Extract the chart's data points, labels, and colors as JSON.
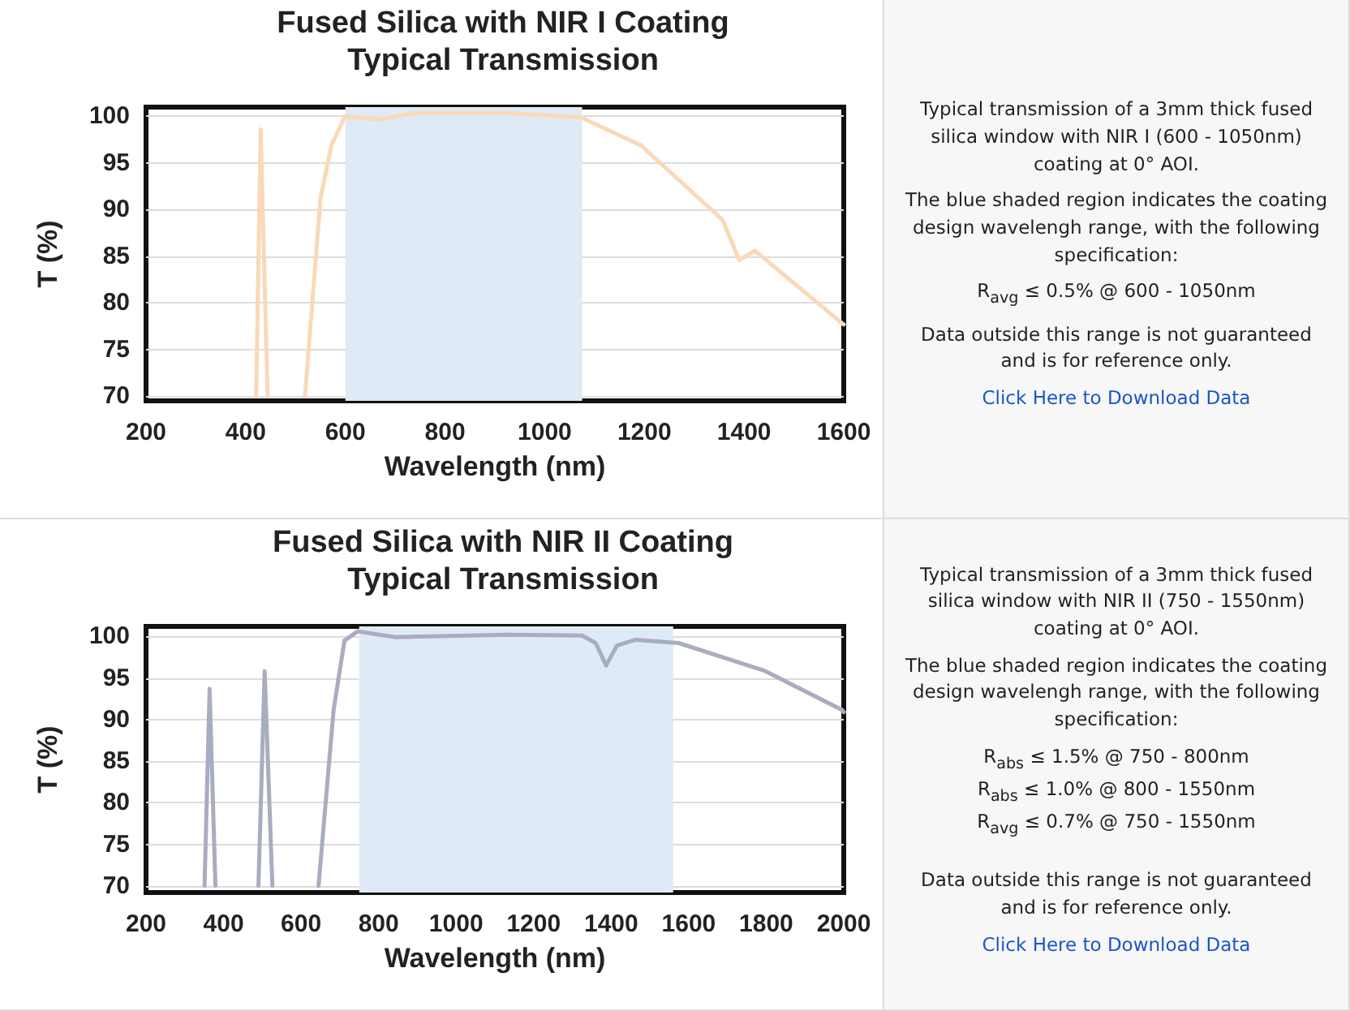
{
  "chart_data": [
    {
      "type": "line",
      "title": "Fused Silica with NIR I Coating",
      "subtitle": "Typical Transmission",
      "xlabel": "Wavelength (nm)",
      "ylabel": "T (%)",
      "x": [
        421,
        430,
        444,
        480,
        519,
        550,
        572,
        599,
        670,
        744,
        920,
        1073,
        1193,
        1357,
        1390,
        1422,
        1597,
        1600
      ],
      "series": [
        {
          "color": "#f9d9b8",
          "values": [
            70,
            98.6,
            70,
            null,
            70,
            91.2,
            96.9,
            100,
            99.7,
            100.4,
            100.4,
            99.9,
            96.9,
            88.9,
            84.6,
            85.6,
            77.8,
            77.7
          ]
        }
      ],
      "xlim": [
        200,
        1600
      ],
      "xticks": [
        200,
        400,
        600,
        800,
        1000,
        1200,
        1400,
        1600
      ],
      "ylim": [
        69.5,
        101
      ],
      "yticks": [
        70,
        75,
        80,
        85,
        90,
        95,
        100
      ],
      "bands": [
        {
          "axis": "x",
          "from": 600,
          "to": 1075,
          "color": "#deeaf6"
        }
      ],
      "grid": "y"
    },
    {
      "type": "other",
      "annotations": [
        "Typical transmission of a 3mm thick fused silica window with NIR I (600 - 1050nm) coating at 0° AOI.",
        "The blue shaded region indicates the coating design wavelengh range, with the following specification:",
        "R$_{avg}$ ≤ 0.5% @ 600 - 1050nm",
        "Data outside this range is not guaranteed and is for reference only.",
        "Click Here to Download Data"
      ]
    },
    {
      "type": "line",
      "title": "Fused Silica with NIR II Coating",
      "subtitle": "Typical Transmission",
      "xlabel": "Wavelength (nm)",
      "ylabel": "T (%)",
      "x": [
        351,
        364,
        379,
        430,
        490,
        506,
        526,
        590,
        645,
        684,
        712,
        746,
        843,
        1132,
        1325,
        1360,
        1387,
        1415,
        1463,
        1574,
        1794,
        1994,
        2000
      ],
      "series": [
        {
          "color": "#a9adc0",
          "values": [
            70,
            93.7,
            70,
            null,
            70,
            95.8,
            70,
            null,
            70,
            91.2,
            99.5,
            100.6,
            99.9,
            100.2,
            100.1,
            99.2,
            96.5,
            98.9,
            99.6,
            99.2,
            95.9,
            91.2,
            90.9
          ]
        }
      ],
      "xlim": [
        200,
        2000
      ],
      "xticks": [
        200,
        400,
        600,
        800,
        1000,
        1200,
        1400,
        1600,
        1800,
        2000
      ],
      "ylim": [
        69.2,
        101.2
      ],
      "yticks": [
        70,
        75,
        80,
        85,
        90,
        95,
        100
      ],
      "bands": [
        {
          "axis": "x",
          "from": 750,
          "to": 1560,
          "color": "#deeaf6"
        }
      ],
      "grid": "y"
    },
    {
      "type": "other",
      "annotations": [
        "Typical transmission of a 3mm thick fused silica window with NIR II (750 - 1550nm) coating at 0° AOI.",
        "The blue shaded region indicates the coating design wavelengh range, with the following specification:",
        "R$_{abs}$ ≤ 1.5% @ 750 - 800nm",
        "R$_{abs}$ ≤ 1.0% @ 800 - 1550nm",
        "R$_{avg}$ ≤ 0.7% @ 750 - 1550nm",
        "Data outside this range is not guaranteed and is for reference only.",
        "Click Here to Download Data"
      ]
    }
  ]
}
